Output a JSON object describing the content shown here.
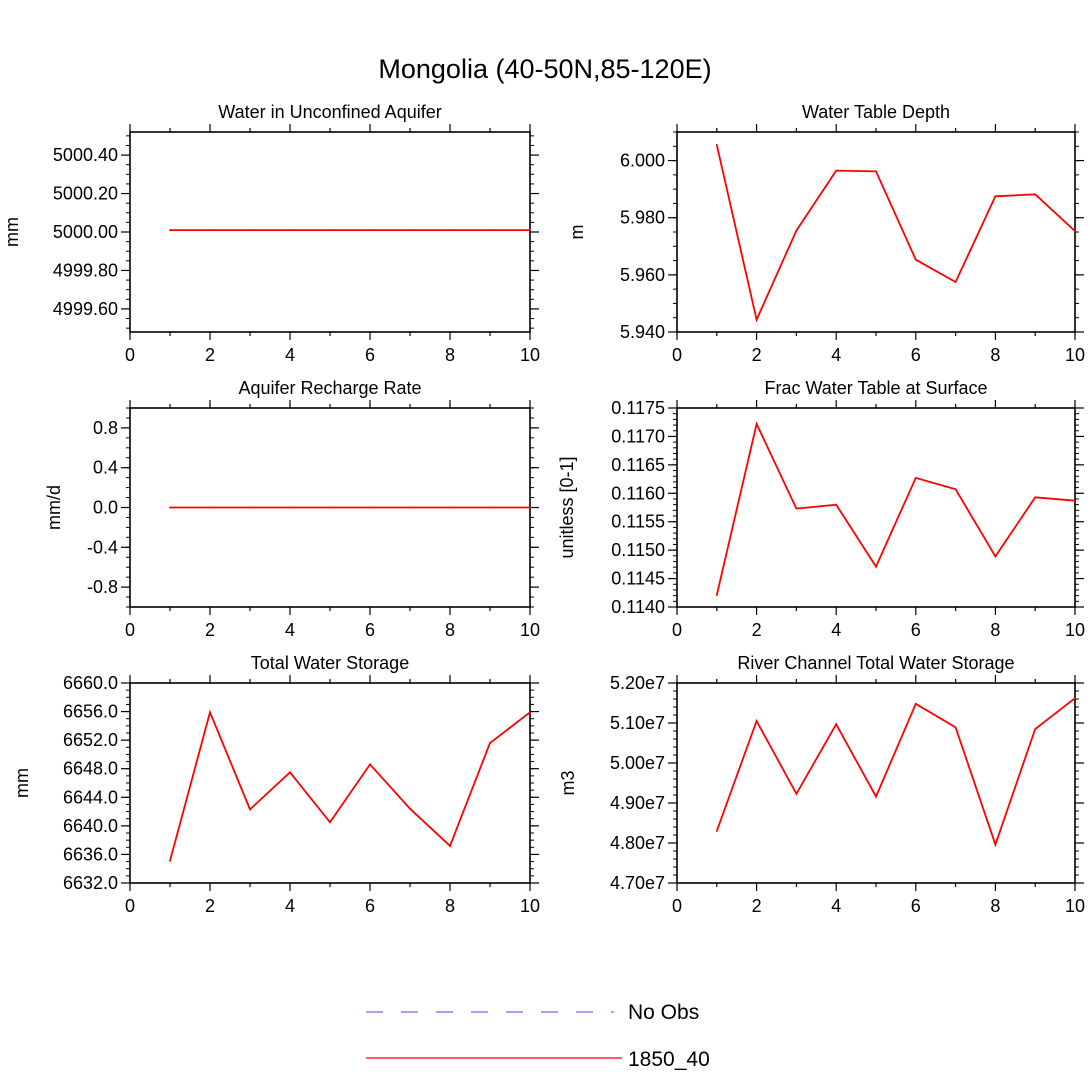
{
  "figure": {
    "title": "Mongolia (40-50N,85-120E)",
    "legend": [
      {
        "label": "No Obs",
        "color": "#6b6bff",
        "dash": true
      },
      {
        "label": "1850_40",
        "color": "#ff0000",
        "dash": false
      }
    ]
  },
  "chart_data": [
    {
      "type": "line",
      "title": "Water in Unconfined Aquifer",
      "ylabel": "mm",
      "xlabel": "",
      "xlim": [
        0,
        10
      ],
      "ylim": [
        4999.48,
        5000.52
      ],
      "xticks": [
        "0",
        "2",
        "4",
        "6",
        "8",
        "10"
      ],
      "yticks": [
        {
          "v": 4999.6,
          "label": "4999.60"
        },
        {
          "v": 4999.8,
          "label": "4999.80"
        },
        {
          "v": 5000.0,
          "label": "5000.00"
        },
        {
          "v": 5000.2,
          "label": "5000.20"
        },
        {
          "v": 5000.4,
          "label": "5000.40"
        }
      ],
      "yminor": 0.05,
      "series": [
        {
          "name": "1850_40",
          "color": "#ff0000",
          "x": [
            1,
            2,
            3,
            4,
            5,
            6,
            7,
            8,
            9,
            10
          ],
          "values": [
            5000.01,
            5000.01,
            5000.01,
            5000.01,
            5000.01,
            5000.01,
            5000.01,
            5000.01,
            5000.01,
            5000.01
          ]
        }
      ]
    },
    {
      "type": "line",
      "title": "Water Table Depth",
      "ylabel": "m",
      "xlabel": "",
      "xlim": [
        0,
        10
      ],
      "ylim": [
        5.94,
        6.01
      ],
      "xticks": [
        "0",
        "2",
        "4",
        "6",
        "8",
        "10"
      ],
      "yticks": [
        {
          "v": 5.94,
          "label": "5.940"
        },
        {
          "v": 5.96,
          "label": "5.960"
        },
        {
          "v": 5.98,
          "label": "5.980"
        },
        {
          "v": 6.0,
          "label": "6.000"
        }
      ],
      "yminor": 0.005,
      "series": [
        {
          "name": "1850_40",
          "color": "#ff0000",
          "x": [
            1,
            2,
            3,
            4,
            5,
            6,
            7,
            8,
            9,
            10
          ],
          "values": [
            6.0055,
            5.9443,
            5.9755,
            5.9965,
            5.9962,
            5.9653,
            5.9575,
            5.9875,
            5.9882,
            5.9753
          ]
        }
      ]
    },
    {
      "type": "line",
      "title": "Aquifer Recharge Rate",
      "ylabel": "mm/d",
      "xlabel": "",
      "xlim": [
        0,
        10
      ],
      "ylim": [
        -1.0,
        1.0
      ],
      "xticks": [
        "0",
        "2",
        "4",
        "6",
        "8",
        "10"
      ],
      "yticks": [
        {
          "v": -0.8,
          "label": "-0.8"
        },
        {
          "v": -0.4,
          "label": "-0.4"
        },
        {
          "v": 0.0,
          "label": "0.0"
        },
        {
          "v": 0.4,
          "label": "0.4"
        },
        {
          "v": 0.8,
          "label": "0.8"
        }
      ],
      "yminor": 0.1,
      "series": [
        {
          "name": "1850_40",
          "color": "#ff0000",
          "x": [
            1,
            2,
            3,
            4,
            5,
            6,
            7,
            8,
            9,
            10
          ],
          "values": [
            0,
            0,
            0,
            0,
            0,
            0,
            0,
            0,
            0,
            0
          ]
        }
      ]
    },
    {
      "type": "line",
      "title": "Frac Water Table at Surface",
      "ylabel": "unitless [0-1]",
      "xlabel": "",
      "xlim": [
        0,
        10
      ],
      "ylim": [
        0.114,
        0.1175
      ],
      "xticks": [
        "0",
        "2",
        "4",
        "6",
        "8",
        "10"
      ],
      "yticks": [
        {
          "v": 0.114,
          "label": "0.1140"
        },
        {
          "v": 0.1145,
          "label": "0.1145"
        },
        {
          "v": 0.115,
          "label": "0.1150"
        },
        {
          "v": 0.1155,
          "label": "0.1155"
        },
        {
          "v": 0.116,
          "label": "0.1160"
        },
        {
          "v": 0.1165,
          "label": "0.1165"
        },
        {
          "v": 0.117,
          "label": "0.1170"
        },
        {
          "v": 0.1175,
          "label": "0.1175"
        }
      ],
      "yminor": 0.0001,
      "series": [
        {
          "name": "1850_40",
          "color": "#ff0000",
          "x": [
            1,
            2,
            3,
            4,
            5,
            6,
            7,
            8,
            9,
            10
          ],
          "values": [
            0.11421,
            0.11722,
            0.11573,
            0.1158,
            0.11471,
            0.11627,
            0.11607,
            0.11489,
            0.11593,
            0.11587
          ]
        }
      ]
    },
    {
      "type": "line",
      "title": "Total Water Storage",
      "ylabel": "mm",
      "xlabel": "",
      "xlim": [
        0,
        10
      ],
      "ylim": [
        6632,
        6660
      ],
      "xticks": [
        "0",
        "2",
        "4",
        "6",
        "8",
        "10"
      ],
      "yticks": [
        {
          "v": 6632,
          "label": "6632.0"
        },
        {
          "v": 6636,
          "label": "6636.0"
        },
        {
          "v": 6640,
          "label": "6640.0"
        },
        {
          "v": 6644,
          "label": "6644.0"
        },
        {
          "v": 6648,
          "label": "6648.0"
        },
        {
          "v": 6652,
          "label": "6652.0"
        },
        {
          "v": 6656,
          "label": "6656.0"
        },
        {
          "v": 6660,
          "label": "6660.0"
        }
      ],
      "yminor": 1,
      "series": [
        {
          "name": "1850_40",
          "color": "#ff0000",
          "x": [
            1,
            2,
            3,
            4,
            5,
            6,
            7,
            8,
            9,
            10
          ],
          "values": [
            6635.1,
            6655.9,
            6642.3,
            6647.5,
            6640.5,
            6648.6,
            6642.4,
            6637.2,
            6651.6,
            6655.9
          ]
        }
      ]
    },
    {
      "type": "line",
      "title": "River Channel Total Water Storage",
      "ylabel": "m3",
      "xlabel": "",
      "xlim": [
        0,
        10
      ],
      "ylim": [
        47000000,
        52000000
      ],
      "xticks": [
        "0",
        "2",
        "4",
        "6",
        "8",
        "10"
      ],
      "yticks": [
        {
          "v": 47000000,
          "label": "4.70e7"
        },
        {
          "v": 48000000,
          "label": "4.80e7"
        },
        {
          "v": 49000000,
          "label": "4.90e7"
        },
        {
          "v": 50000000,
          "label": "5.00e7"
        },
        {
          "v": 51000000,
          "label": "5.10e7"
        },
        {
          "v": 52000000,
          "label": "5.20e7"
        }
      ],
      "yminor": 200000,
      "series": [
        {
          "name": "1850_40",
          "color": "#ff0000",
          "x": [
            1,
            2,
            3,
            4,
            5,
            6,
            7,
            8,
            9,
            10
          ],
          "values": [
            48300000,
            51050000,
            49230000,
            50970000,
            49160000,
            51480000,
            50890000,
            47960000,
            50850000,
            51620000
          ]
        }
      ]
    }
  ]
}
